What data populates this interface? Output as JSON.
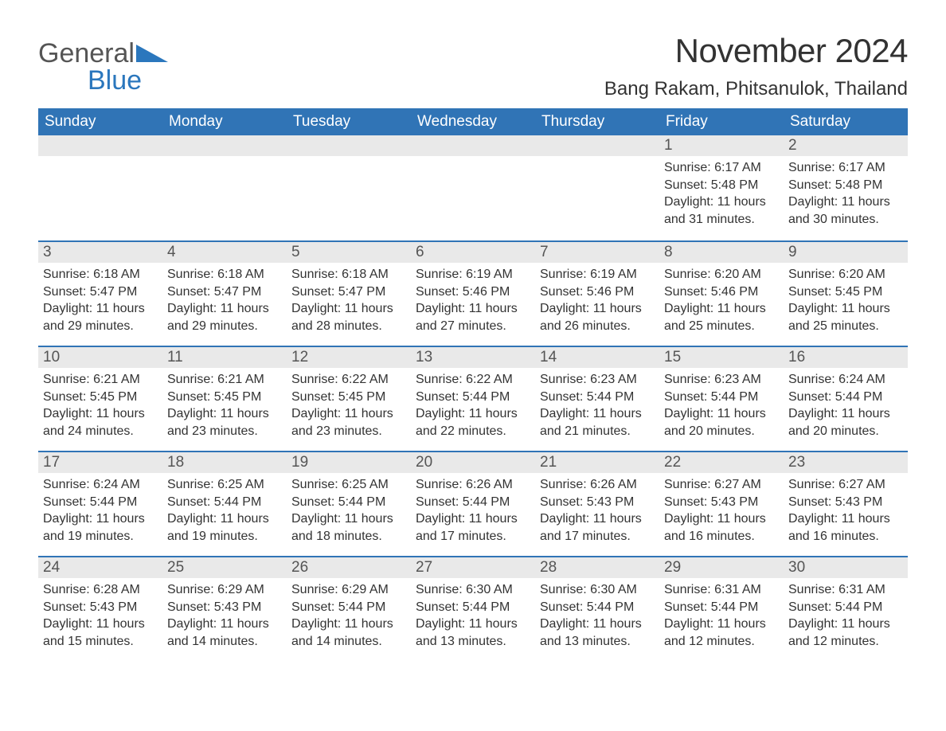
{
  "brand": {
    "part1": "General",
    "part2": "Blue",
    "icon_color": "#2b77bd"
  },
  "title": "November 2024",
  "location": "Bang Rakam, Phitsanulok, Thailand",
  "colors": {
    "header_bg": "#3074b6",
    "header_text": "#ffffff",
    "strip_bg": "#e9e9e9",
    "divider": "#3074b6",
    "body_text": "#333333"
  },
  "day_names": [
    "Sunday",
    "Monday",
    "Tuesday",
    "Wednesday",
    "Thursday",
    "Friday",
    "Saturday"
  ],
  "first_weekday_index": 5,
  "days": [
    {
      "n": 1,
      "sunrise": "6:17 AM",
      "sunset": "5:48 PM",
      "daylight": "11 hours and 31 minutes."
    },
    {
      "n": 2,
      "sunrise": "6:17 AM",
      "sunset": "5:48 PM",
      "daylight": "11 hours and 30 minutes."
    },
    {
      "n": 3,
      "sunrise": "6:18 AM",
      "sunset": "5:47 PM",
      "daylight": "11 hours and 29 minutes."
    },
    {
      "n": 4,
      "sunrise": "6:18 AM",
      "sunset": "5:47 PM",
      "daylight": "11 hours and 29 minutes."
    },
    {
      "n": 5,
      "sunrise": "6:18 AM",
      "sunset": "5:47 PM",
      "daylight": "11 hours and 28 minutes."
    },
    {
      "n": 6,
      "sunrise": "6:19 AM",
      "sunset": "5:46 PM",
      "daylight": "11 hours and 27 minutes."
    },
    {
      "n": 7,
      "sunrise": "6:19 AM",
      "sunset": "5:46 PM",
      "daylight": "11 hours and 26 minutes."
    },
    {
      "n": 8,
      "sunrise": "6:20 AM",
      "sunset": "5:46 PM",
      "daylight": "11 hours and 25 minutes."
    },
    {
      "n": 9,
      "sunrise": "6:20 AM",
      "sunset": "5:45 PM",
      "daylight": "11 hours and 25 minutes."
    },
    {
      "n": 10,
      "sunrise": "6:21 AM",
      "sunset": "5:45 PM",
      "daylight": "11 hours and 24 minutes."
    },
    {
      "n": 11,
      "sunrise": "6:21 AM",
      "sunset": "5:45 PM",
      "daylight": "11 hours and 23 minutes."
    },
    {
      "n": 12,
      "sunrise": "6:22 AM",
      "sunset": "5:45 PM",
      "daylight": "11 hours and 23 minutes."
    },
    {
      "n": 13,
      "sunrise": "6:22 AM",
      "sunset": "5:44 PM",
      "daylight": "11 hours and 22 minutes."
    },
    {
      "n": 14,
      "sunrise": "6:23 AM",
      "sunset": "5:44 PM",
      "daylight": "11 hours and 21 minutes."
    },
    {
      "n": 15,
      "sunrise": "6:23 AM",
      "sunset": "5:44 PM",
      "daylight": "11 hours and 20 minutes."
    },
    {
      "n": 16,
      "sunrise": "6:24 AM",
      "sunset": "5:44 PM",
      "daylight": "11 hours and 20 minutes."
    },
    {
      "n": 17,
      "sunrise": "6:24 AM",
      "sunset": "5:44 PM",
      "daylight": "11 hours and 19 minutes."
    },
    {
      "n": 18,
      "sunrise": "6:25 AM",
      "sunset": "5:44 PM",
      "daylight": "11 hours and 19 minutes."
    },
    {
      "n": 19,
      "sunrise": "6:25 AM",
      "sunset": "5:44 PM",
      "daylight": "11 hours and 18 minutes."
    },
    {
      "n": 20,
      "sunrise": "6:26 AM",
      "sunset": "5:44 PM",
      "daylight": "11 hours and 17 minutes."
    },
    {
      "n": 21,
      "sunrise": "6:26 AM",
      "sunset": "5:43 PM",
      "daylight": "11 hours and 17 minutes."
    },
    {
      "n": 22,
      "sunrise": "6:27 AM",
      "sunset": "5:43 PM",
      "daylight": "11 hours and 16 minutes."
    },
    {
      "n": 23,
      "sunrise": "6:27 AM",
      "sunset": "5:43 PM",
      "daylight": "11 hours and 16 minutes."
    },
    {
      "n": 24,
      "sunrise": "6:28 AM",
      "sunset": "5:43 PM",
      "daylight": "11 hours and 15 minutes."
    },
    {
      "n": 25,
      "sunrise": "6:29 AM",
      "sunset": "5:43 PM",
      "daylight": "11 hours and 14 minutes."
    },
    {
      "n": 26,
      "sunrise": "6:29 AM",
      "sunset": "5:44 PM",
      "daylight": "11 hours and 14 minutes."
    },
    {
      "n": 27,
      "sunrise": "6:30 AM",
      "sunset": "5:44 PM",
      "daylight": "11 hours and 13 minutes."
    },
    {
      "n": 28,
      "sunrise": "6:30 AM",
      "sunset": "5:44 PM",
      "daylight": "11 hours and 13 minutes."
    },
    {
      "n": 29,
      "sunrise": "6:31 AM",
      "sunset": "5:44 PM",
      "daylight": "11 hours and 12 minutes."
    },
    {
      "n": 30,
      "sunrise": "6:31 AM",
      "sunset": "5:44 PM",
      "daylight": "11 hours and 12 minutes."
    }
  ],
  "labels": {
    "sunrise": "Sunrise:",
    "sunset": "Sunset:",
    "daylight": "Daylight:"
  }
}
